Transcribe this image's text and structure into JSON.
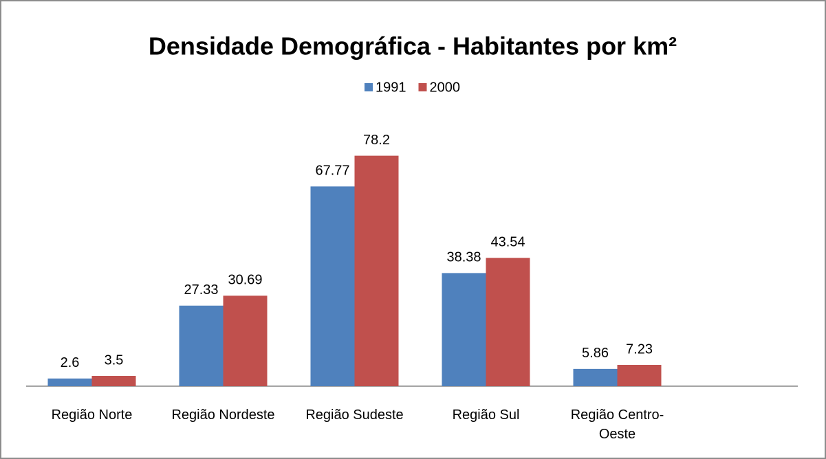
{
  "chart_data": {
    "type": "bar",
    "title": "Densidade Demográfica - Habitantes por km²",
    "categories": [
      "Região Norte",
      "Região Nordeste",
      "Região Sudeste",
      "Região Sul",
      "Região Centro-Oeste",
      null
    ],
    "series": [
      {
        "name": "1991",
        "color": "#4f81bd",
        "values": [
          2.6,
          27.33,
          67.77,
          38.38,
          5.86,
          null
        ]
      },
      {
        "name": "2000",
        "color": "#c0504d",
        "values": [
          3.5,
          30.69,
          78.2,
          43.54,
          7.23,
          null
        ]
      }
    ],
    "ylim": [
      0,
      90
    ],
    "legend": "top"
  }
}
